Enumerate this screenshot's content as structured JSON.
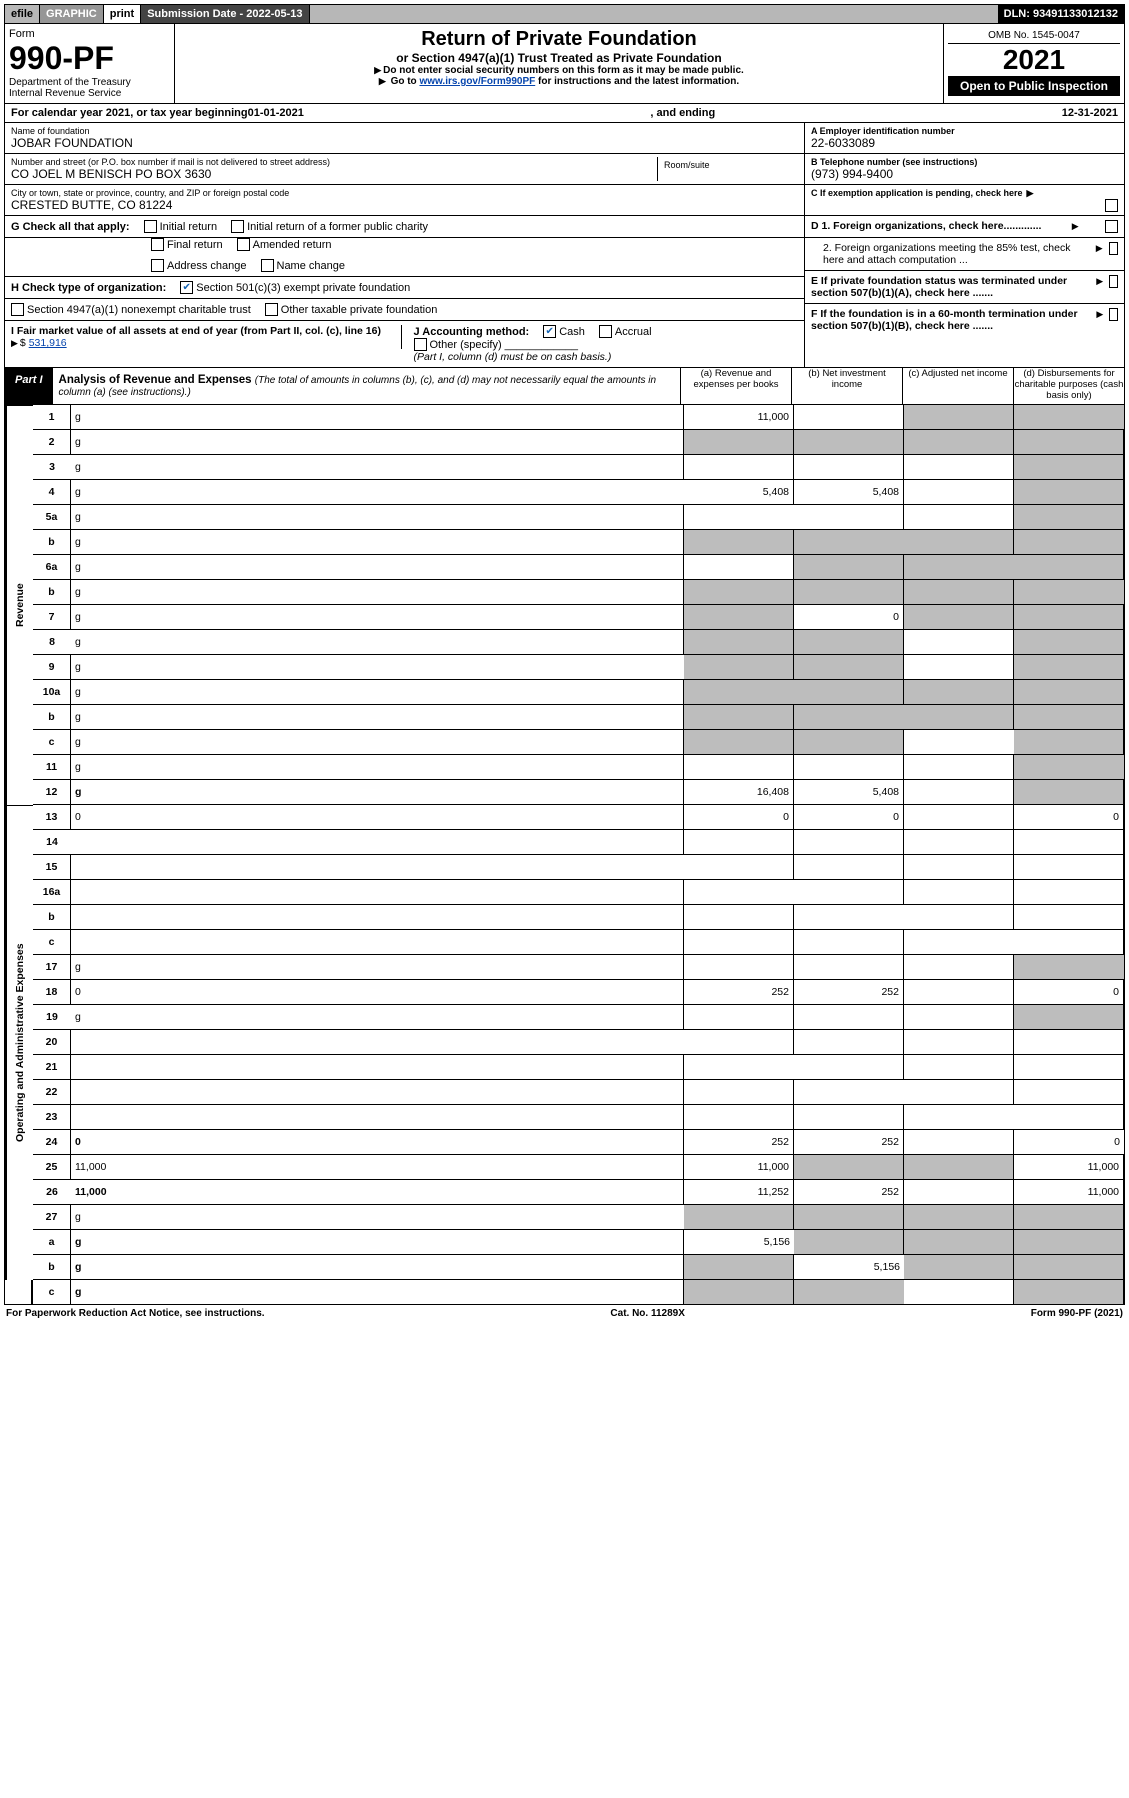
{
  "topbar": {
    "efile": "efile",
    "graphic": "GRAPHIC",
    "print": "print",
    "subdate_lbl": "Submission Date - 2022-05-13",
    "dln": "DLN: 93491133012132"
  },
  "header": {
    "form_word": "Form",
    "form_no": "990-PF",
    "dept": "Department of the Treasury",
    "irs": "Internal Revenue Service",
    "title": "Return of Private Foundation",
    "subtitle": "or Section 4947(a)(1) Trust Treated as Private Foundation",
    "instr1": "Do not enter social security numbers on this form as it may be made public.",
    "instr2_pre": "Go to ",
    "instr2_link": "www.irs.gov/Form990PF",
    "instr2_post": " for instructions and the latest information.",
    "omb": "OMB No. 1545-0047",
    "year": "2021",
    "open": "Open to Public Inspection"
  },
  "calyear": {
    "pre": "For calendar year 2021, or tax year beginning ",
    "begin": "01-01-2021",
    "mid": ", and ending ",
    "end": "12-31-2021"
  },
  "info": {
    "name_lbl": "Name of foundation",
    "name": "JOBAR FOUNDATION",
    "addr_lbl": "Number and street (or P.O. box number if mail is not delivered to street address)",
    "addr": "CO JOEL M BENISCH PO BOX 3630",
    "room_lbl": "Room/suite",
    "city_lbl": "City or town, state or province, country, and ZIP or foreign postal code",
    "city": "CRESTED BUTTE, CO  81224",
    "a_lbl": "A Employer identification number",
    "a_val": "22-6033089",
    "b_lbl": "B Telephone number (see instructions)",
    "b_val": "(973) 994-9400",
    "c_lbl": "C If exemption application is pending, check here",
    "d1_lbl": "D 1. Foreign organizations, check here.............",
    "d2_lbl": "2. Foreign organizations meeting the 85% test, check here and attach computation ...",
    "e_lbl": "E If private foundation status was terminated under section 507(b)(1)(A), check here .......",
    "f_lbl": "F If the foundation is in a 60-month termination under section 507(b)(1)(B), check here ......."
  },
  "g": {
    "lbl": "G Check all that apply:",
    "initial": "Initial return",
    "initial_former": "Initial return of a former public charity",
    "final": "Final return",
    "amended": "Amended return",
    "addr_change": "Address change",
    "name_change": "Name change"
  },
  "h": {
    "lbl": "H Check type of organization:",
    "s501c3": "Section 501(c)(3) exempt private foundation",
    "s4947": "Section 4947(a)(1) nonexempt charitable trust",
    "other_tax": "Other taxable private foundation"
  },
  "i": {
    "lbl": "I Fair market value of all assets at end of year (from Part II, col. (c), line 16)",
    "sym": "$",
    "val": "531,916"
  },
  "j": {
    "lbl": "J Accounting method:",
    "cash": "Cash",
    "accrual": "Accrual",
    "other": "Other (specify)",
    "note": "(Part I, column (d) must be on cash basis.)"
  },
  "part1": {
    "part": "Part I",
    "title": "Analysis of Revenue and Expenses",
    "sub": "(The total of amounts in columns (b), (c), and (d) may not necessarily equal the amounts in column (a) (see instructions).)",
    "col_a": "(a) Revenue and expenses per books",
    "col_b": "(b) Net investment income",
    "col_c": "(c) Adjusted net income",
    "col_d": "(d) Disbursements for charitable purposes (cash basis only)"
  },
  "sections": {
    "revenue": "Revenue",
    "expenses": "Operating and Administrative Expenses"
  },
  "rows": [
    {
      "n": "1",
      "d": "g",
      "a": "11,000",
      "b": "",
      "c": "g"
    },
    {
      "n": "2",
      "d": "g",
      "a": "g",
      "b": "g",
      "c": "g"
    },
    {
      "n": "3",
      "d": "g",
      "a": "",
      "b": "",
      "c": ""
    },
    {
      "n": "4",
      "d": "g",
      "a": "5,408",
      "b": "5,408",
      "c": ""
    },
    {
      "n": "5a",
      "d": "g",
      "a": "",
      "b": "",
      "c": ""
    },
    {
      "n": "b",
      "d": "g",
      "a": "g",
      "b": "g",
      "c": "g"
    },
    {
      "n": "6a",
      "d": "g",
      "a": "",
      "b": "g",
      "c": "g"
    },
    {
      "n": "b",
      "d": "g",
      "a": "g",
      "b": "g",
      "c": "g"
    },
    {
      "n": "7",
      "d": "g",
      "a": "g",
      "b": "0",
      "c": "g"
    },
    {
      "n": "8",
      "d": "g",
      "a": "g",
      "b": "g",
      "c": ""
    },
    {
      "n": "9",
      "d": "g",
      "a": "g",
      "b": "g",
      "c": ""
    },
    {
      "n": "10a",
      "d": "g",
      "a": "g",
      "b": "g",
      "c": "g"
    },
    {
      "n": "b",
      "d": "g",
      "a": "g",
      "b": "g",
      "c": "g"
    },
    {
      "n": "c",
      "d": "g",
      "a": "g",
      "b": "g",
      "c": ""
    },
    {
      "n": "11",
      "d": "g",
      "a": "",
      "b": "",
      "c": ""
    },
    {
      "n": "12",
      "d": "g",
      "a": "16,408",
      "b": "5,408",
      "c": "",
      "bold": true
    },
    {
      "n": "13",
      "d": "0",
      "a": "0",
      "b": "0",
      "c": ""
    },
    {
      "n": "14",
      "d": "",
      "a": "",
      "b": "",
      "c": ""
    },
    {
      "n": "15",
      "d": "",
      "a": "",
      "b": "",
      "c": ""
    },
    {
      "n": "16a",
      "d": "",
      "a": "",
      "b": "",
      "c": ""
    },
    {
      "n": "b",
      "d": "",
      "a": "",
      "b": "",
      "c": ""
    },
    {
      "n": "c",
      "d": "",
      "a": "",
      "b": "",
      "c": ""
    },
    {
      "n": "17",
      "d": "g",
      "a": "",
      "b": "",
      "c": ""
    },
    {
      "n": "18",
      "d": "0",
      "a": "252",
      "b": "252",
      "c": ""
    },
    {
      "n": "19",
      "d": "g",
      "a": "",
      "b": "",
      "c": ""
    },
    {
      "n": "20",
      "d": "",
      "a": "",
      "b": "",
      "c": ""
    },
    {
      "n": "21",
      "d": "",
      "a": "",
      "b": "",
      "c": ""
    },
    {
      "n": "22",
      "d": "",
      "a": "",
      "b": "",
      "c": ""
    },
    {
      "n": "23",
      "d": "",
      "a": "",
      "b": "",
      "c": ""
    },
    {
      "n": "24",
      "d": "0",
      "a": "252",
      "b": "252",
      "c": "",
      "bold": true
    },
    {
      "n": "25",
      "d": "11,000",
      "a": "11,000",
      "b": "g",
      "c": "g"
    },
    {
      "n": "26",
      "d": "11,000",
      "a": "11,252",
      "b": "252",
      "c": "",
      "bold": true
    },
    {
      "n": "27",
      "d": "g",
      "a": "g",
      "b": "g",
      "c": "g"
    },
    {
      "n": "a",
      "d": "g",
      "a": "5,156",
      "b": "g",
      "c": "g",
      "bold": true
    },
    {
      "n": "b",
      "d": "g",
      "a": "g",
      "b": "5,156",
      "c": "g",
      "bold": true
    },
    {
      "n": "c",
      "d": "g",
      "a": "g",
      "b": "g",
      "c": "",
      "bold": true
    }
  ],
  "section_splits": {
    "revenue_count": 16,
    "expense_count": 19
  },
  "footer": {
    "left": "For Paperwork Reduction Act Notice, see instructions.",
    "mid": "Cat. No. 11289X",
    "right": "Form 990-PF (2021)"
  }
}
